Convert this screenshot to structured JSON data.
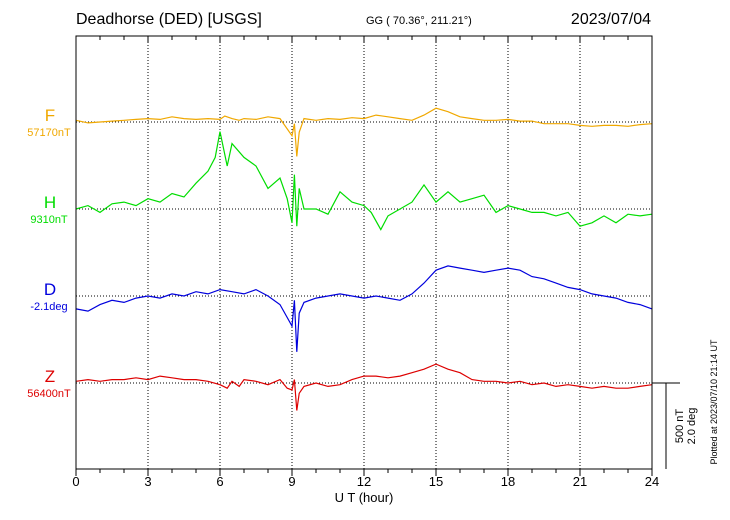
{
  "header": {
    "station": "Deadhorse (DED)  [USGS]",
    "coordinates": "GG ( 70.36°, 211.21°)",
    "date": "2023/07/04"
  },
  "side_note": "Plotted at 2023/07/10 21:14 UT",
  "scale_bar": {
    "line1": "500 nT",
    "line2": "2.0 deg"
  },
  "chart_data": {
    "type": "line",
    "xlabel": "U T (hour)",
    "xlim": [
      0,
      24
    ],
    "x_ticks": [
      "0",
      "3",
      "6",
      "9",
      "12",
      "15",
      "18",
      "21",
      "24"
    ],
    "grid": true,
    "scale": {
      "nT_per_bar": 500,
      "deg_per_bar": 2.0
    },
    "series": [
      {
        "name": "F",
        "baseline_label": "57170nT",
        "color": "#f0a800",
        "x": [
          0,
          0.5,
          1,
          1.5,
          2,
          2.5,
          3,
          3.5,
          4,
          4.5,
          5,
          5.5,
          6,
          6.2,
          6.5,
          6.8,
          7,
          7.5,
          8,
          8.5,
          8.8,
          9,
          9.1,
          9.2,
          9.3,
          9.5,
          10,
          10.5,
          11,
          11.5,
          12,
          12.5,
          13,
          13.5,
          14,
          14.5,
          15,
          15.5,
          16,
          16.5,
          17,
          17.5,
          18,
          18.5,
          19,
          19.5,
          20,
          20.5,
          21,
          21.5,
          22,
          22.5,
          23,
          23.5,
          24
        ],
        "y": [
          10,
          -5,
          0,
          5,
          10,
          15,
          20,
          15,
          30,
          20,
          15,
          20,
          15,
          35,
          20,
          10,
          20,
          15,
          30,
          20,
          -40,
          -80,
          -10,
          -200,
          -60,
          20,
          10,
          20,
          15,
          25,
          20,
          40,
          30,
          20,
          10,
          40,
          80,
          60,
          30,
          20,
          10,
          10,
          15,
          5,
          5,
          -10,
          -10,
          -10,
          -20,
          -25,
          -20,
          -20,
          -25,
          -15,
          -10
        ]
      },
      {
        "name": "H",
        "baseline_label": "9310nT",
        "color": "#00dd00",
        "x": [
          0,
          0.5,
          1,
          1.5,
          2,
          2.5,
          3,
          3.5,
          4,
          4.5,
          5,
          5.5,
          5.8,
          6,
          6.3,
          6.5,
          7,
          7.5,
          8,
          8.5,
          8.8,
          9,
          9.1,
          9.2,
          9.3,
          9.5,
          10,
          10.5,
          11,
          11.5,
          12,
          12.3,
          12.7,
          13,
          13.5,
          14,
          14.5,
          15,
          15.5,
          16,
          16.5,
          17,
          17.5,
          18,
          18.5,
          19,
          19.5,
          20,
          20.5,
          21,
          21.5,
          22,
          22.5,
          23,
          23.5,
          24
        ],
        "y": [
          0,
          20,
          -20,
          30,
          40,
          20,
          60,
          40,
          90,
          70,
          150,
          220,
          300,
          450,
          250,
          380,
          300,
          250,
          120,
          180,
          60,
          -80,
          200,
          -100,
          120,
          0,
          0,
          -30,
          100,
          40,
          20,
          -20,
          -120,
          -40,
          0,
          40,
          140,
          40,
          100,
          40,
          60,
          80,
          -20,
          20,
          0,
          -20,
          -20,
          -40,
          -20,
          -100,
          -80,
          -40,
          -80,
          -30,
          -40,
          -30
        ]
      },
      {
        "name": "D",
        "baseline_label": "-2.1deg",
        "color": "#0000dd",
        "x": [
          0,
          0.5,
          1,
          1.5,
          2,
          2.5,
          3,
          3.5,
          4,
          4.5,
          5,
          5.5,
          6,
          6.5,
          7,
          7.5,
          8,
          8.5,
          8.8,
          9,
          9.1,
          9.2,
          9.3,
          9.5,
          10,
          10.5,
          11,
          11.5,
          12,
          12.5,
          13,
          13.5,
          14,
          14.5,
          15,
          15.5,
          16,
          16.5,
          17,
          17.5,
          18,
          18.5,
          19,
          19.5,
          20,
          20.5,
          21,
          21.5,
          22,
          22.5,
          23,
          23.5,
          24
        ],
        "y": [
          -0.3,
          -0.35,
          -0.2,
          -0.1,
          -0.15,
          -0.05,
          0,
          -0.05,
          0.05,
          0,
          0.1,
          0.05,
          0.15,
          0.1,
          0.05,
          0.15,
          0,
          -0.2,
          -0.5,
          -0.7,
          -0.1,
          -1.3,
          -0.4,
          -0.15,
          -0.05,
          0,
          0.05,
          0,
          -0.05,
          0,
          -0.05,
          -0.1,
          0.05,
          0.3,
          0.6,
          0.7,
          0.65,
          0.6,
          0.55,
          0.6,
          0.65,
          0.6,
          0.45,
          0.4,
          0.3,
          0.2,
          0.15,
          0.05,
          0,
          -0.05,
          -0.15,
          -0.2,
          -0.3
        ]
      },
      {
        "name": "Z",
        "baseline_label": "56400nT",
        "color": "#dd0000",
        "x": [
          0,
          0.5,
          1,
          1.5,
          2,
          2.5,
          3,
          3.5,
          4,
          4.5,
          5,
          5.5,
          6,
          6.3,
          6.5,
          6.8,
          7,
          7.5,
          8,
          8.5,
          8.8,
          9,
          9.1,
          9.2,
          9.3,
          9.5,
          10,
          10.5,
          11,
          11.5,
          12,
          12.5,
          13,
          13.5,
          14,
          14.5,
          15,
          15.5,
          16,
          16.5,
          17,
          17.5,
          18,
          18.5,
          19,
          19.5,
          20,
          20.5,
          21,
          21.5,
          22,
          22.5,
          23,
          23.5,
          24
        ],
        "y": [
          10,
          20,
          10,
          20,
          20,
          30,
          20,
          40,
          30,
          20,
          20,
          10,
          -10,
          -30,
          10,
          -20,
          20,
          10,
          -10,
          20,
          -30,
          -40,
          20,
          -160,
          -60,
          -20,
          0,
          -20,
          -10,
          20,
          40,
          40,
          30,
          40,
          60,
          80,
          110,
          80,
          60,
          20,
          10,
          10,
          0,
          10,
          -10,
          0,
          -20,
          -10,
          -20,
          -30,
          -20,
          -30,
          -30,
          -20,
          -10
        ]
      }
    ]
  }
}
